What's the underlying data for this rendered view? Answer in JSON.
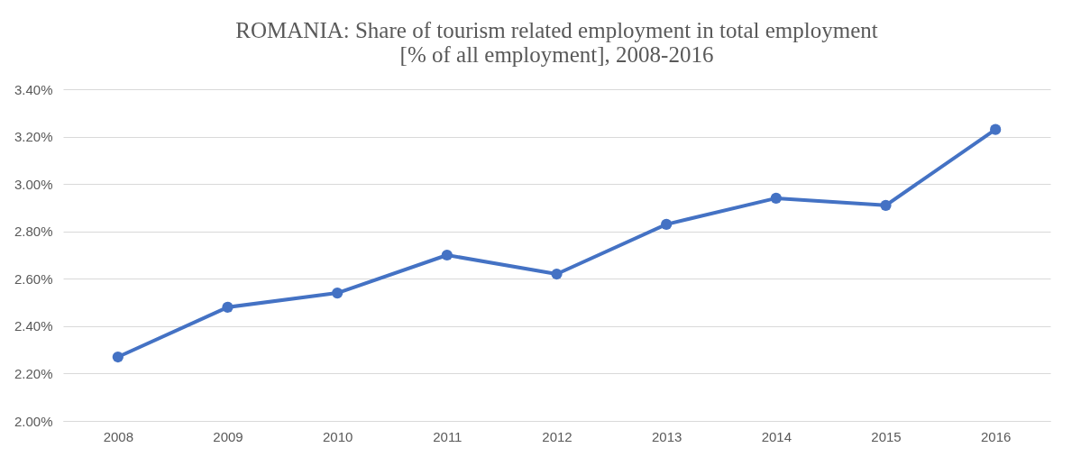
{
  "chart_data": {
    "type": "line",
    "title": [
      "ROMANIA:  Share of tourism related employment in total employment",
      "[% of all  employment], 2008-2016"
    ],
    "categories": [
      "2008",
      "2009",
      "2010",
      "2011",
      "2012",
      "2013",
      "2014",
      "2015",
      "2016"
    ],
    "series": [
      {
        "color": "#4472c4",
        "values": [
          2.27,
          2.48,
          2.54,
          2.7,
          2.62,
          2.83,
          2.94,
          2.91,
          3.23
        ]
      }
    ],
    "ylim": [
      2.0,
      3.4
    ],
    "yticks": [
      {
        "value": 2.0,
        "label": "2.00%"
      },
      {
        "value": 2.2,
        "label": "2.20%"
      },
      {
        "value": 2.4,
        "label": "2.40%"
      },
      {
        "value": 2.6,
        "label": "2.60%"
      },
      {
        "value": 2.8,
        "label": "2.80%"
      },
      {
        "value": 3.0,
        "label": "3.00%"
      },
      {
        "value": 3.2,
        "label": "3.20%"
      },
      {
        "value": 3.4,
        "label": "3.40%"
      }
    ],
    "grid": "y",
    "marker": "circle"
  }
}
